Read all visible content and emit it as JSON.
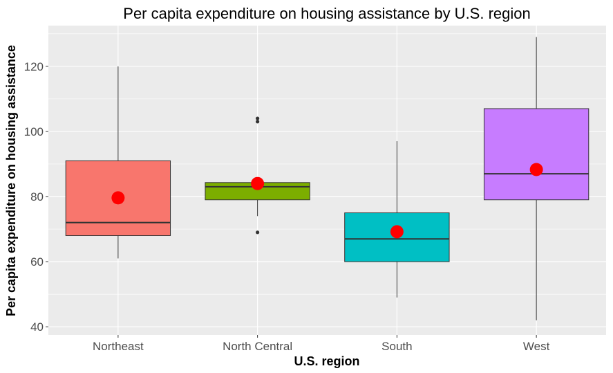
{
  "chart_data": {
    "type": "box",
    "title": "Per capita expenditure on housing assistance by U.S. region",
    "xlabel": "U.S. region",
    "ylabel": "Per capita expenditure on housing assistance",
    "ylim": [
      37.5,
      132.5
    ],
    "yticks": [
      40,
      60,
      80,
      100,
      120
    ],
    "ytick_labels": [
      "40",
      "60",
      "80",
      "100",
      "120"
    ],
    "grid": true,
    "legend": "none",
    "categories": [
      "Northeast",
      "North Central",
      "South",
      "West"
    ],
    "boxes": [
      {
        "category": "Northeast",
        "whisker_low": 61,
        "q1": 68,
        "median": 72,
        "q3": 91,
        "whisker_high": 120,
        "mean": 79.6,
        "outliers": [],
        "fill": "#F8766D"
      },
      {
        "category": "North Central",
        "whisker_low": 74,
        "q1": 79,
        "median": 83,
        "q3": 84.3,
        "whisker_high": 85,
        "mean": 84.0,
        "outliers": [
          103,
          104,
          69
        ],
        "fill": "#7CAE00"
      },
      {
        "category": "South",
        "whisker_low": 49,
        "q1": 60,
        "median": 67,
        "q3": 75,
        "whisker_high": 97,
        "mean": 69.2,
        "outliers": [],
        "fill": "#00BFC4"
      },
      {
        "category": "West",
        "whisker_low": 42,
        "q1": 79,
        "median": 87,
        "q3": 107,
        "whisker_high": 129,
        "mean": 88.3,
        "outliers": [],
        "fill": "#C77CFF"
      }
    ],
    "colors": {
      "panel_background": "#EBEBEB",
      "grid_line": "#FFFFFF",
      "mean_point": "#FF0000",
      "box_outline": "#333333",
      "outlier_point": "#333333"
    }
  }
}
